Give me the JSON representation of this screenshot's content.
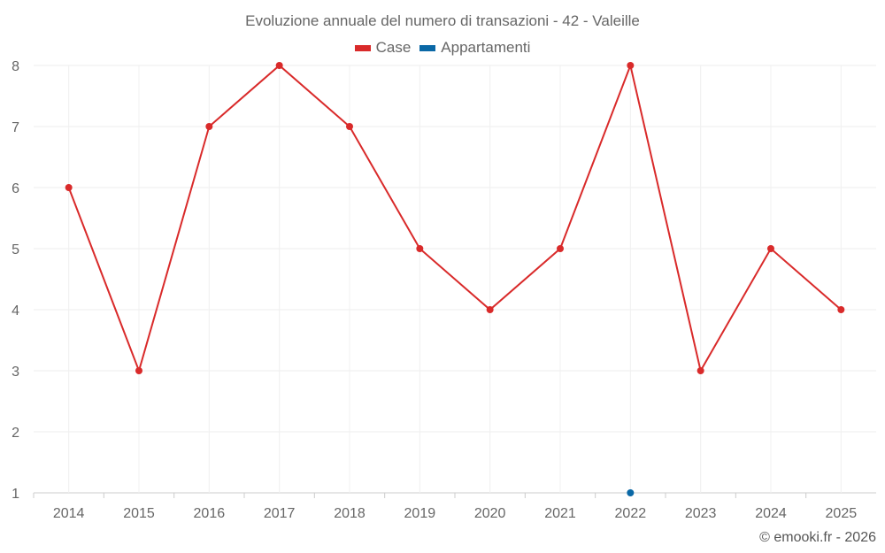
{
  "chart_data": {
    "type": "line",
    "title": "Evoluzione annuale del numero di transazioni - 42 - Valeille",
    "categories": [
      "2014",
      "2015",
      "2016",
      "2017",
      "2018",
      "2019",
      "2020",
      "2021",
      "2022",
      "2023",
      "2024",
      "2025"
    ],
    "series": [
      {
        "name": "Case",
        "color": "#d92a2a",
        "values": [
          6,
          3,
          7,
          8,
          7,
          5,
          4,
          5,
          8,
          3,
          5,
          4
        ]
      },
      {
        "name": "Appartamenti",
        "color": "#0a68a6",
        "values": [
          null,
          null,
          null,
          null,
          null,
          null,
          null,
          null,
          1,
          null,
          null,
          null
        ]
      }
    ],
    "yticks": [
      1,
      2,
      3,
      4,
      5,
      6,
      7,
      8
    ],
    "ylim": [
      1,
      8
    ],
    "xlabel": "",
    "ylabel": "",
    "grid": true,
    "legend": "top-center"
  },
  "credit": "© emooki.fr - 2026"
}
